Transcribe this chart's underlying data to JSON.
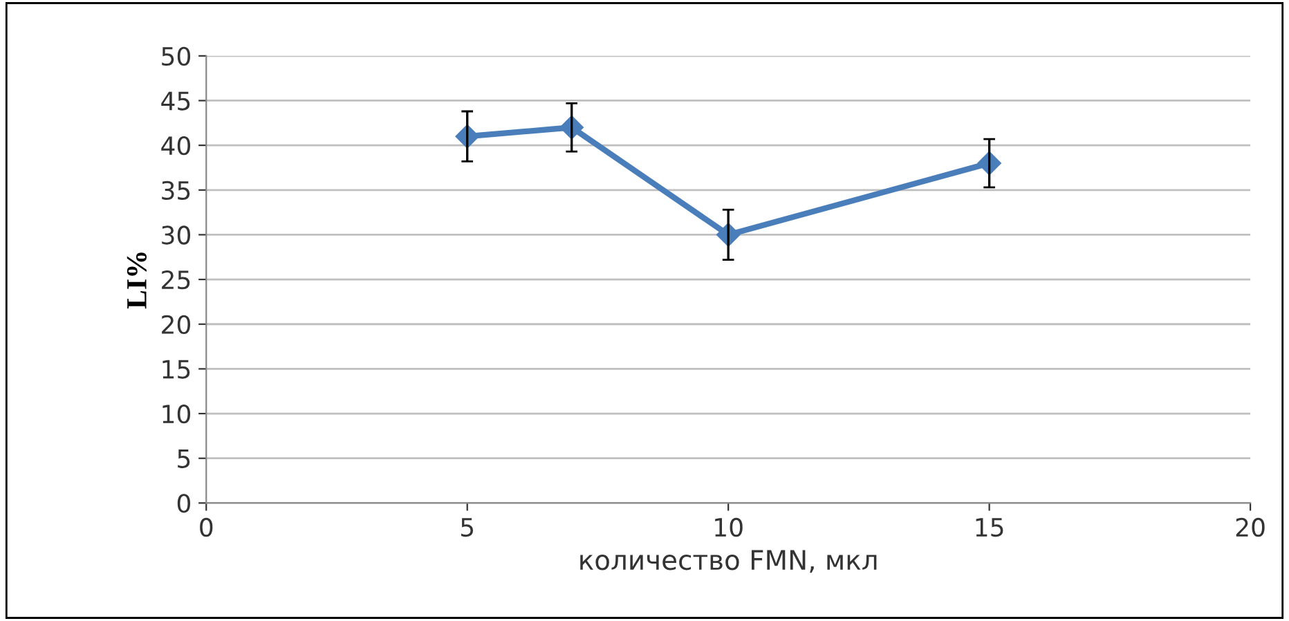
{
  "chart_data": {
    "type": "line",
    "xlabel": "количество FMN, мкл",
    "ylabel": "LI%",
    "x": [
      5,
      7,
      10,
      15
    ],
    "series": [
      {
        "color": "#4a7ebb",
        "values": [
          41,
          42,
          30,
          38
        ],
        "errors": [
          2.8,
          2.7,
          2.8,
          2.7
        ]
      }
    ],
    "xlim": [
      0,
      20
    ],
    "xticks": [
      0,
      5,
      10,
      15,
      20
    ],
    "ylim": [
      0,
      50
    ],
    "yticks": [
      0,
      5,
      10,
      15,
      20,
      25,
      30,
      35,
      40,
      45,
      50
    ],
    "grid": "y",
    "legend": false,
    "marker": "diamond",
    "line_style": "solid"
  }
}
